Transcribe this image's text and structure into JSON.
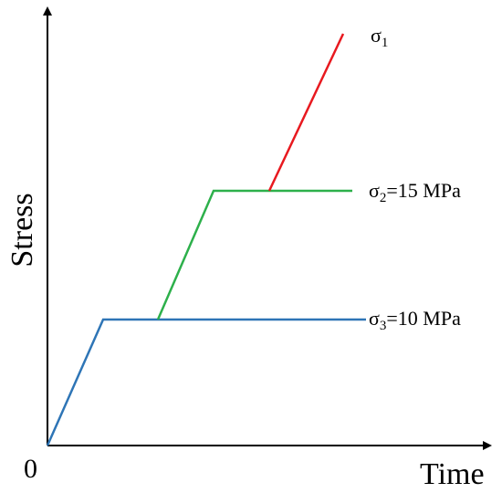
{
  "axes": {
    "ylabel": "Stress",
    "xlabel": "Time",
    "origin": "0"
  },
  "labels": {
    "sigma1": {
      "symbol": "σ",
      "sub": "1",
      "suffix": ""
    },
    "sigma2": {
      "symbol": "σ",
      "sub": "2",
      "suffix": "=15 MPa"
    },
    "sigma3": {
      "symbol": "σ",
      "sub": "3",
      "suffix": "=10 MPa"
    }
  },
  "colors": {
    "axis": "#000000",
    "sigma3_path": "#2E75B6",
    "sigma2_path": "#2DB04B",
    "sigma1_path": "#E8191F"
  }
}
